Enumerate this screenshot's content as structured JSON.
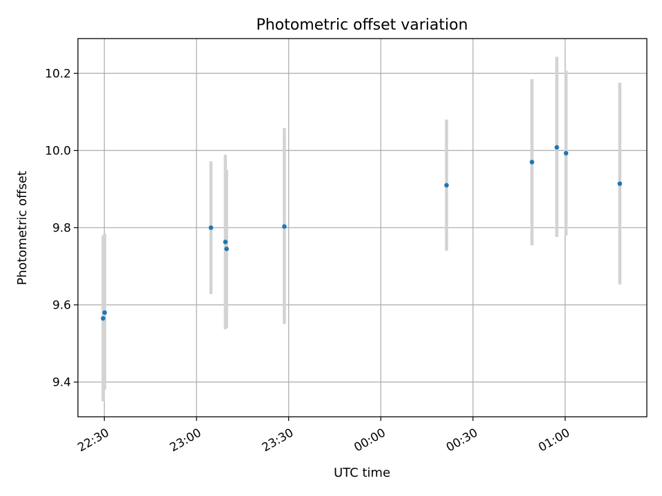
{
  "chart_data": {
    "type": "scatter",
    "title": "Photometric offset variation",
    "xlabel": "UTC time",
    "ylabel": "Photometric offset",
    "x_ticks": [
      {
        "label": "22:30",
        "minutes": 0
      },
      {
        "label": "23:00",
        "minutes": 30
      },
      {
        "label": "23:30",
        "minutes": 60
      },
      {
        "label": "00:00",
        "minutes": 90
      },
      {
        "label": "00:30",
        "minutes": 120
      },
      {
        "label": "01:00",
        "minutes": 150
      }
    ],
    "xlim_minutes": [
      -8.6,
      176.6
    ],
    "ylim": [
      9.31,
      10.29
    ],
    "y_ticks": [
      9.4,
      9.6,
      9.8,
      10.0,
      10.2
    ],
    "grid": true,
    "colors": {
      "point": "#1f77b4",
      "error": "#d3d3d3"
    },
    "points": [
      {
        "t": -0.4,
        "y": 9.565,
        "lo": 9.35,
        "hi": 9.78
      },
      {
        "t": 0.1,
        "y": 9.58,
        "lo": 9.38,
        "hi": 9.785
      },
      {
        "t": 34.7,
        "y": 9.8,
        "lo": 9.628,
        "hi": 9.972
      },
      {
        "t": 39.4,
        "y": 9.763,
        "lo": 9.537,
        "hi": 9.989
      },
      {
        "t": 39.8,
        "y": 9.745,
        "lo": 9.54,
        "hi": 9.95
      },
      {
        "t": 58.6,
        "y": 9.803,
        "lo": 9.55,
        "hi": 10.058
      },
      {
        "t": 111.4,
        "y": 9.91,
        "lo": 9.74,
        "hi": 10.08
      },
      {
        "t": 139.2,
        "y": 9.97,
        "lo": 9.754,
        "hi": 10.185
      },
      {
        "t": 147.3,
        "y": 10.008,
        "lo": 9.776,
        "hi": 10.243
      },
      {
        "t": 150.3,
        "y": 9.993,
        "lo": 9.78,
        "hi": 10.207
      },
      {
        "t": 167.8,
        "y": 9.914,
        "lo": 9.653,
        "hi": 10.176
      }
    ]
  }
}
